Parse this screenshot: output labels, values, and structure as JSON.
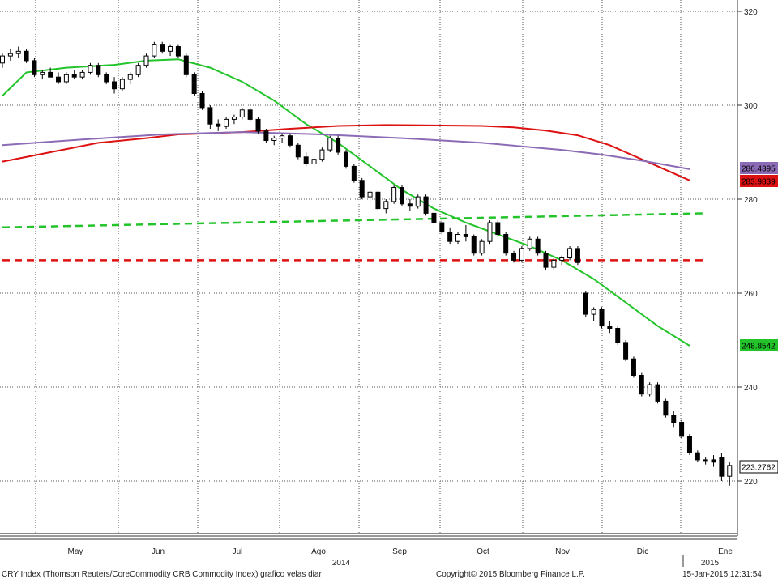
{
  "chart_data": {
    "type": "candlestick",
    "y_axis": {
      "ticks": [
        220,
        240,
        260,
        280,
        300,
        320
      ],
      "range": [
        208,
        322
      ],
      "side": "right"
    },
    "x_axis": {
      "month_labels": [
        "May",
        "Jun",
        "Jul",
        "Ago",
        "Sep",
        "Oct",
        "Nov",
        "Dic",
        "Ene"
      ],
      "year_labels": [
        "2014",
        "2015"
      ]
    },
    "grid": true,
    "last_value_labels": [
      {
        "value": "286.4395",
        "color": "#8b6bb5"
      },
      {
        "value": "283.9839",
        "color": "#dd1111"
      },
      {
        "value": "248.8542",
        "color": "#22c42a"
      },
      {
        "value": "223.2762",
        "color": "#000000"
      }
    ],
    "series": [
      {
        "kind": "moving-average",
        "color": "#22c42a",
        "points": [
          [
            0,
            302
          ],
          [
            3,
            307
          ],
          [
            8,
            308
          ],
          [
            14,
            308.6
          ],
          [
            18,
            309.5
          ],
          [
            22,
            309.8
          ],
          [
            26,
            308
          ],
          [
            30,
            305
          ],
          [
            34,
            301
          ],
          [
            38,
            296
          ],
          [
            42,
            292
          ],
          [
            46,
            287
          ],
          [
            50,
            282
          ],
          [
            54,
            278
          ],
          [
            58,
            275
          ],
          [
            62,
            272.5
          ],
          [
            66,
            270
          ],
          [
            70,
            267
          ],
          [
            74,
            263
          ],
          [
            78,
            258
          ],
          [
            82,
            253
          ],
          [
            86,
            248.8
          ]
        ]
      },
      {
        "kind": "moving-average",
        "color": "#dd1111",
        "points": [
          [
            0,
            288
          ],
          [
            6,
            290
          ],
          [
            12,
            292
          ],
          [
            18,
            293
          ],
          [
            22,
            293.8
          ],
          [
            30,
            294.3
          ],
          [
            36,
            295
          ],
          [
            42,
            295.6
          ],
          [
            48,
            295.8
          ],
          [
            54,
            295.7
          ],
          [
            60,
            295.6
          ],
          [
            64,
            295.3
          ],
          [
            68,
            294.6
          ],
          [
            72,
            293.6
          ],
          [
            76,
            291.5
          ],
          [
            80,
            288.5
          ],
          [
            84,
            285.5
          ],
          [
            86,
            284
          ]
        ]
      },
      {
        "kind": "moving-average",
        "color": "#8b6bb5",
        "points": [
          [
            0,
            291.5
          ],
          [
            10,
            292.7
          ],
          [
            20,
            293.8
          ],
          [
            30,
            294.3
          ],
          [
            40,
            293.8
          ],
          [
            50,
            293
          ],
          [
            60,
            292
          ],
          [
            70,
            290.5
          ],
          [
            75,
            289.5
          ],
          [
            80,
            288.2
          ],
          [
            86,
            286.4
          ]
        ]
      },
      {
        "kind": "level",
        "style": "dashed",
        "color": "#22c42a",
        "points": [
          [
            0,
            274
          ],
          [
            88,
            277
          ]
        ]
      },
      {
        "kind": "level",
        "style": "dashed",
        "color": "#dd1111",
        "points": [
          [
            0,
            267
          ],
          [
            88,
            267
          ]
        ]
      }
    ],
    "candles": [
      [
        0,
        309,
        311,
        308,
        310.5
      ],
      [
        1,
        310.5,
        312,
        309.5,
        311
      ],
      [
        2,
        311,
        312.5,
        310,
        311.5
      ],
      [
        3,
        311.5,
        312,
        309,
        309.5
      ],
      [
        4,
        309.5,
        310,
        306,
        306.5
      ],
      [
        5,
        306.5,
        307.5,
        305.5,
        307
      ],
      [
        6,
        307,
        308,
        306,
        306
      ],
      [
        7,
        306,
        307,
        304.5,
        305
      ],
      [
        8,
        305,
        307,
        304.5,
        306.5
      ],
      [
        9,
        306.5,
        307.5,
        305.5,
        306
      ],
      [
        10,
        306,
        307.5,
        305.5,
        307
      ],
      [
        11,
        307,
        309,
        306.5,
        308.5
      ],
      [
        12,
        308.5,
        309,
        306,
        306.5
      ],
      [
        13,
        306.5,
        307,
        304.5,
        305
      ],
      [
        14,
        305,
        306,
        302.5,
        303.5
      ],
      [
        15,
        303.5,
        306,
        303,
        305.5
      ],
      [
        16,
        305.5,
        307,
        304.5,
        306.5
      ],
      [
        17,
        306.5,
        309,
        306,
        308.5
      ],
      [
        18,
        308.5,
        311,
        308,
        310.5
      ],
      [
        19,
        310.5,
        313.5,
        310,
        313
      ],
      [
        20,
        313,
        313.5,
        311,
        311.5
      ],
      [
        21,
        311.5,
        313,
        310.5,
        312.5
      ],
      [
        22,
        312.5,
        313,
        310,
        310.5
      ],
      [
        23,
        310.5,
        311,
        306,
        306.5
      ],
      [
        24,
        306.5,
        307,
        302,
        302.5
      ],
      [
        25,
        302.5,
        303,
        299,
        299.5
      ],
      [
        26,
        299.5,
        300,
        295,
        296
      ],
      [
        27,
        296,
        297,
        294.5,
        295.5
      ],
      [
        28,
        295.5,
        297.5,
        295,
        297
      ],
      [
        29,
        297,
        298,
        296,
        297.5
      ],
      [
        30,
        297.5,
        299.5,
        297,
        299
      ],
      [
        31,
        299,
        299.5,
        296.5,
        297
      ],
      [
        32,
        297,
        297.5,
        294,
        294.5
      ],
      [
        33,
        294.5,
        295,
        292,
        292.5
      ],
      [
        34,
        292.5,
        293.5,
        291.5,
        293
      ],
      [
        35,
        293,
        294,
        292,
        293.5
      ],
      [
        36,
        293.5,
        294,
        291,
        291.5
      ],
      [
        37,
        291.5,
        292,
        288.5,
        289
      ],
      [
        38,
        289,
        290,
        287,
        287.5
      ],
      [
        39,
        287.5,
        289,
        287,
        288.5
      ],
      [
        40,
        288.5,
        291,
        288,
        290.5
      ],
      [
        41,
        290.5,
        293.5,
        290,
        293
      ],
      [
        42,
        293,
        293.5,
        289.5,
        290
      ],
      [
        43,
        290,
        290.5,
        286.5,
        287
      ],
      [
        44,
        287,
        287.5,
        283.5,
        284
      ],
      [
        45,
        284,
        284.5,
        280,
        280.5
      ],
      [
        46,
        280.5,
        282,
        279.5,
        281.5
      ],
      [
        47,
        281.5,
        282,
        277.5,
        278
      ],
      [
        48,
        278,
        280,
        277,
        279.5
      ],
      [
        49,
        279.5,
        283,
        279,
        282.5
      ],
      [
        50,
        282.5,
        283,
        278.5,
        279
      ],
      [
        51,
        279,
        280,
        277.5,
        278.5
      ],
      [
        52,
        278.5,
        281,
        278,
        280.5
      ],
      [
        53,
        280.5,
        281,
        276.5,
        277
      ],
      [
        54,
        277,
        277.5,
        274.5,
        275
      ],
      [
        55,
        275,
        275.5,
        272.5,
        273
      ],
      [
        56,
        273,
        274,
        270.5,
        271
      ],
      [
        57,
        271,
        273,
        270.5,
        272.5
      ],
      [
        58,
        272.5,
        274.5,
        271,
        272
      ],
      [
        59,
        272,
        272.5,
        268,
        268.5
      ],
      [
        60,
        268.5,
        271.5,
        268,
        271
      ],
      [
        61,
        271,
        275.5,
        270.5,
        275
      ],
      [
        62,
        275,
        275.5,
        272,
        272.5
      ],
      [
        63,
        272.5,
        273,
        268,
        268.5
      ],
      [
        64,
        268.5,
        269,
        266.5,
        267
      ],
      [
        65,
        267,
        270,
        266.5,
        269.5
      ],
      [
        66,
        269.5,
        272,
        269,
        271.5
      ],
      [
        67,
        271.5,
        272,
        268,
        268.5
      ],
      [
        68,
        268.5,
        269,
        265,
        265.5
      ],
      [
        69,
        265.5,
        267.5,
        265,
        267
      ],
      [
        70,
        267,
        268,
        266,
        267.5
      ],
      [
        71,
        267.5,
        270,
        267,
        269.5
      ],
      [
        72,
        269.5,
        270,
        266,
        266.5
      ],
      [
        73,
        260,
        260.5,
        255,
        255.5
      ],
      [
        74,
        255.5,
        257,
        254,
        256.5
      ],
      [
        75,
        256.5,
        257,
        252.5,
        253
      ],
      [
        76,
        253,
        254,
        251.5,
        252.5
      ],
      [
        77,
        252.5,
        253,
        249,
        249.5
      ],
      [
        78,
        249.5,
        250,
        245.5,
        246
      ],
      [
        79,
        246,
        246.5,
        242,
        242.5
      ],
      [
        80,
        242.5,
        243,
        238,
        238.5
      ],
      [
        81,
        238.5,
        241,
        238,
        240.5
      ],
      [
        82,
        240.5,
        241,
        236.5,
        237
      ],
      [
        83,
        237,
        237.5,
        233.5,
        234
      ],
      [
        84,
        234,
        235,
        231.5,
        232.5
      ],
      [
        85,
        232.5,
        233,
        229,
        229.5
      ],
      [
        86,
        229.5,
        230,
        225.5,
        226
      ],
      [
        87,
        226,
        226.5,
        224,
        224.5
      ],
      [
        88,
        224.5,
        225,
        223.5,
        224.5
      ],
      [
        89,
        224.5,
        225.5,
        223,
        224
      ],
      [
        90,
        225,
        226,
        220,
        221
      ],
      [
        91,
        221,
        224,
        219,
        223.3
      ]
    ]
  },
  "footer": {
    "left_text": "CRY Index (Thomson Reuters/CoreCommodity CRB Commodity Index) grafico velas diar",
    "copyright": "Copyright© 2015 Bloomberg Finance L.P.",
    "timestamp": "15-Jan-2015 12:31:54"
  }
}
